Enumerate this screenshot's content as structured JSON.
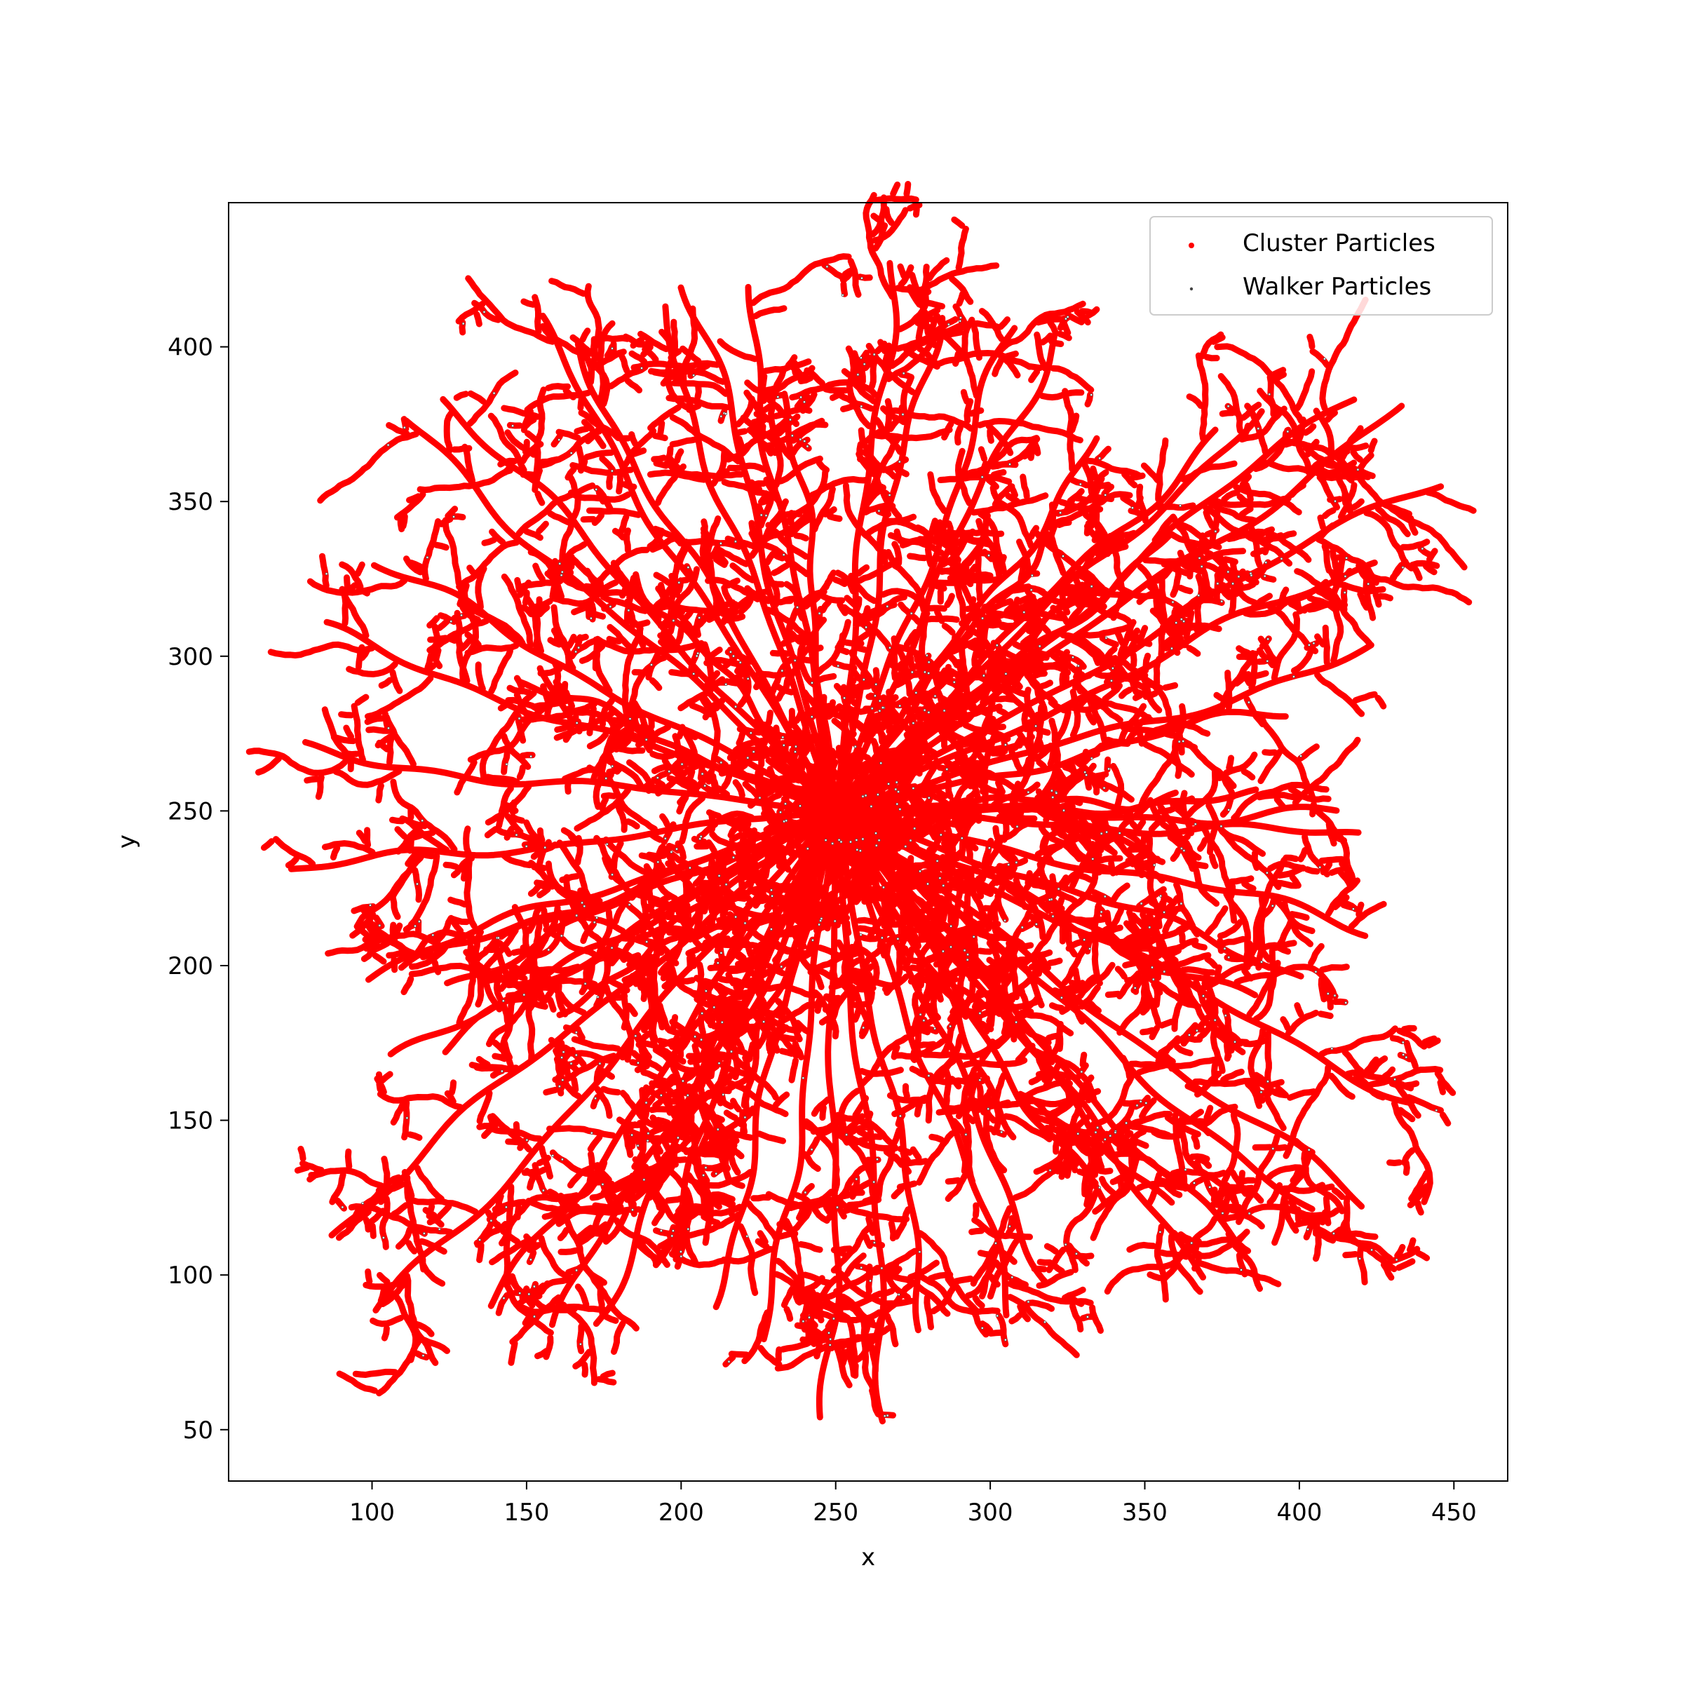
{
  "chart_data": {
    "type": "scatter",
    "title": "",
    "xlabel": "x",
    "ylabel": "y",
    "xlim": [
      53.6,
      467.4
    ],
    "ylim": [
      33.4,
      446.6
    ],
    "xticks": [
      100,
      150,
      200,
      250,
      300,
      350,
      400,
      450
    ],
    "yticks": [
      50,
      100,
      150,
      200,
      250,
      300,
      350,
      400
    ],
    "grid": false,
    "legend_position": "top-right",
    "center": [
      250,
      250
    ],
    "series": [
      {
        "name": "Cluster Particles",
        "color": "#ff0000",
        "marker": "dot",
        "branch_tips": [
          [
            74,
            230
          ],
          [
            78,
            268
          ],
          [
            84,
            307
          ],
          [
            101,
            330
          ],
          [
            98,
            198
          ],
          [
            110,
            198
          ],
          [
            124,
            195
          ],
          [
            110,
            375
          ],
          [
            124,
            384
          ],
          [
            152,
            408
          ],
          [
            165,
            400
          ],
          [
            148,
            292
          ],
          [
            186,
            327
          ],
          [
            192,
            412
          ],
          [
            203,
            420
          ],
          [
            220,
            419
          ],
          [
            235,
            385
          ],
          [
            268,
            427
          ],
          [
            281,
            410
          ],
          [
            308,
            406
          ],
          [
            320,
            404
          ],
          [
            335,
            370
          ],
          [
            373,
            373
          ],
          [
            387,
            380
          ],
          [
            416,
            385
          ],
          [
            433,
            381
          ],
          [
            444,
            358
          ],
          [
            424,
            331
          ],
          [
            424,
            301
          ],
          [
            395,
            283
          ],
          [
            358,
            339
          ],
          [
            318,
            340
          ],
          [
            360,
            255
          ],
          [
            386,
            253
          ],
          [
            412,
            248
          ],
          [
            419,
            241
          ],
          [
            422,
            213
          ],
          [
            401,
            198
          ],
          [
            385,
            189
          ],
          [
            437,
            157
          ],
          [
            420,
            122
          ],
          [
            403,
            120
          ],
          [
            380,
            107
          ],
          [
            371,
            101
          ],
          [
            357,
            122
          ],
          [
            336,
            122
          ],
          [
            319,
            190
          ],
          [
            309,
            203
          ],
          [
            310,
            146
          ],
          [
            320,
            98
          ],
          [
            308,
            88
          ],
          [
            281,
            83
          ],
          [
            268,
            53
          ],
          [
            248,
            54
          ],
          [
            229,
            79
          ],
          [
            210,
            90
          ],
          [
            190,
            104
          ],
          [
            171,
            85
          ],
          [
            160,
            83
          ],
          [
            140,
            89
          ],
          [
            103,
            87
          ],
          [
            86,
            114
          ],
          [
            108,
            168
          ],
          [
            122,
            175
          ],
          [
            160,
            185
          ],
          [
            202,
            148
          ],
          [
            220,
            155
          ]
        ]
      },
      {
        "name": "Walker Particles",
        "color": "#000000",
        "marker": "dot"
      }
    ]
  }
}
